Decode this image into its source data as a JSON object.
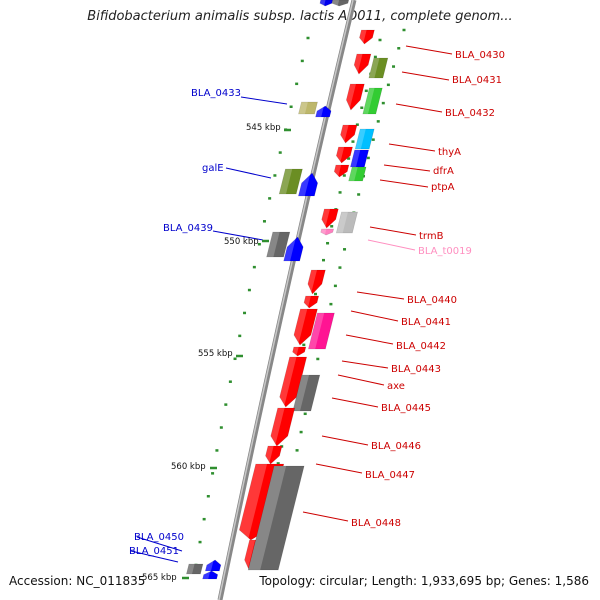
{
  "title": "Bifidobacterium animalis subsp. lactis AD011, complete genom...",
  "footer": {
    "accession": "Accession: NC_011835",
    "topology": "Topology: circular; Length: 1,933,695 bp; Genes: 1,586"
  },
  "scale_labels": [
    "545 kbp",
    "550 kbp",
    "555 kbp",
    "560 kbp",
    "565 kbp"
  ],
  "colors": {
    "forward_label": "#cc0000",
    "reverse_label": "#0000cc",
    "trna_label": "#ff8fc0",
    "backbone": "#888888",
    "tick": "#2f8f2f"
  },
  "genes": [
    {
      "id": "g-top-blue",
      "label": "",
      "strand": "forward",
      "color": "#0000ee"
    },
    {
      "id": "g-top-gray",
      "label": "",
      "strand": "forward",
      "color": "#666666"
    },
    {
      "id": "g-0430",
      "label": "BLA_0430",
      "strand": "forward",
      "color": "#ff0000"
    },
    {
      "id": "g-0431",
      "label": "BLA_0431",
      "strand": "forward",
      "color": "#ff0000"
    },
    {
      "id": "g-0431-cog",
      "label": "",
      "strand": "forward",
      "color": "#6b8e23"
    },
    {
      "id": "g-0432",
      "label": "BLA_0432",
      "strand": "forward",
      "color": "#ff0000"
    },
    {
      "id": "g-0432-cog",
      "label": "",
      "strand": "forward",
      "color": "#33cc33"
    },
    {
      "id": "g-0433",
      "label": "BLA_0433",
      "strand": "reverse",
      "color": "#0000ff"
    },
    {
      "id": "g-0433-cog",
      "label": "",
      "strand": "reverse",
      "color": "#bdb76b"
    },
    {
      "id": "g-thyA",
      "label": "thyA",
      "strand": "forward",
      "color": "#ff0000"
    },
    {
      "id": "g-thyA-cog",
      "label": "",
      "strand": "forward",
      "color": "#00bfff"
    },
    {
      "id": "g-dfrA",
      "label": "dfrA",
      "strand": "forward",
      "color": "#ff0000"
    },
    {
      "id": "g-dfrA-cog",
      "label": "",
      "strand": "forward",
      "color": "#0000ff"
    },
    {
      "id": "g-ptpA",
      "label": "ptpA",
      "strand": "forward",
      "color": "#ff0000"
    },
    {
      "id": "g-ptpA-cog",
      "label": "",
      "strand": "forward",
      "color": "#33cc33"
    },
    {
      "id": "g-galE",
      "label": "galE",
      "strand": "reverse",
      "color": "#0000ff"
    },
    {
      "id": "g-galE-cog",
      "label": "",
      "strand": "reverse",
      "color": "#6b8e23"
    },
    {
      "id": "g-trmB",
      "label": "trmB",
      "strand": "forward",
      "color": "#ff0000"
    },
    {
      "id": "g-trmB-cog",
      "label": "",
      "strand": "forward",
      "color": "#bbbbbb"
    },
    {
      "id": "g-t0019",
      "label": "BLA_t0019",
      "strand": "forward",
      "color": "#ff80c0"
    },
    {
      "id": "g-0439",
      "label": "BLA_0439",
      "strand": "reverse",
      "color": "#0000ff"
    },
    {
      "id": "g-0439-cog",
      "label": "",
      "strand": "reverse",
      "color": "#666666"
    },
    {
      "id": "g-0440",
      "label": "BLA_0440",
      "strand": "forward",
      "color": "#ff0000"
    },
    {
      "id": "g-0441",
      "label": "BLA_0441",
      "strand": "forward",
      "color": "#ff0000"
    },
    {
      "id": "g-0442",
      "label": "BLA_0442",
      "strand": "forward",
      "color": "#ff0000"
    },
    {
      "id": "g-0442-cog",
      "label": "",
      "strand": "forward",
      "color": "#ff1493"
    },
    {
      "id": "g-0443",
      "label": "BLA_0443",
      "strand": "forward",
      "color": "#ff0000"
    },
    {
      "id": "g-axe",
      "label": "axe",
      "strand": "forward",
      "color": "#ff0000"
    },
    {
      "id": "g-axe-cog",
      "label": "",
      "strand": "forward",
      "color": "#666666"
    },
    {
      "id": "g-0445",
      "label": "BLA_0445",
      "strand": "forward",
      "color": "#ff0000"
    },
    {
      "id": "g-0446",
      "label": "BLA_0446",
      "strand": "forward",
      "color": "#ff0000"
    },
    {
      "id": "g-0447",
      "label": "BLA_0447",
      "strand": "forward",
      "color": "#ff0000"
    },
    {
      "id": "g-0448",
      "label": "BLA_0448",
      "strand": "forward",
      "color": "#ff0000"
    },
    {
      "id": "g-0448-cog",
      "label": "",
      "strand": "forward",
      "color": "#666666"
    },
    {
      "id": "g-0450",
      "label": "BLA_0450",
      "strand": "reverse",
      "color": "#0000ff"
    },
    {
      "id": "g-0451",
      "label": "BLA_0451",
      "strand": "reverse",
      "color": "#0000ff"
    },
    {
      "id": "g-0451-cog",
      "label": "",
      "strand": "reverse",
      "color": "#666666"
    }
  ]
}
